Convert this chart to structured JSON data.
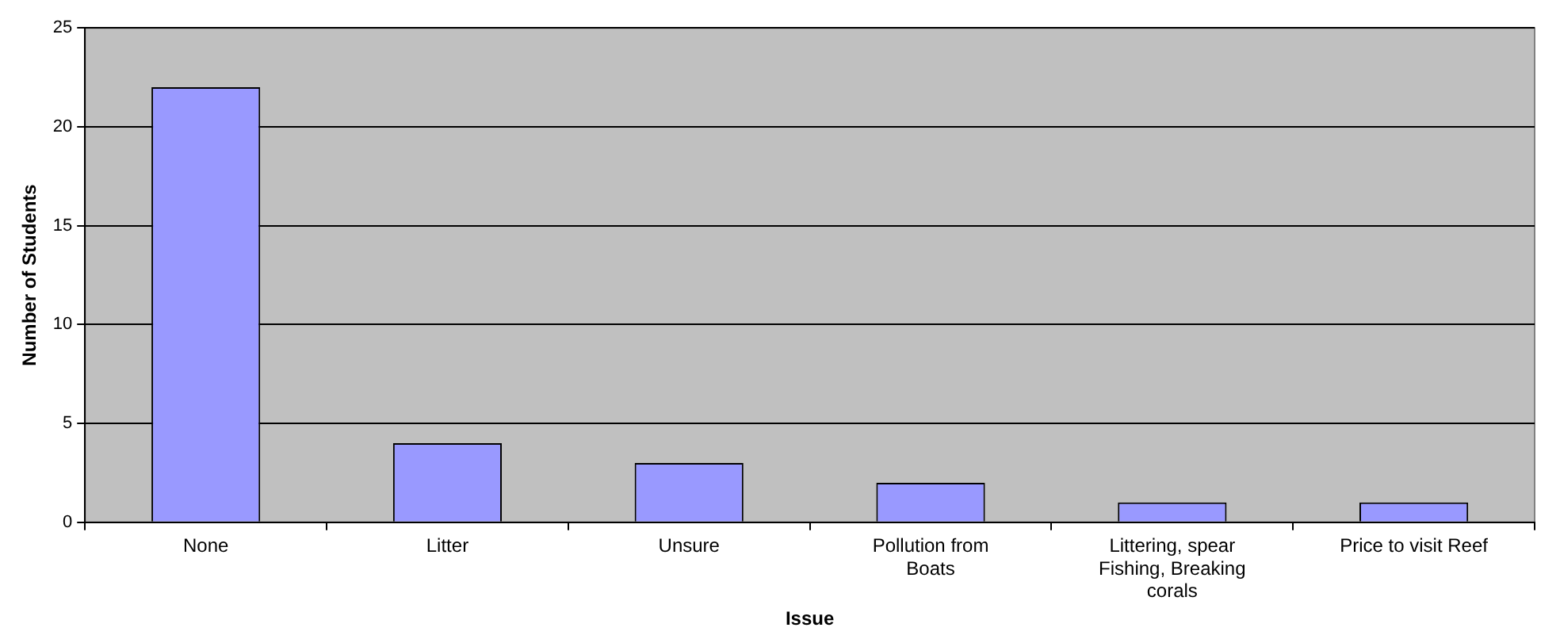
{
  "chart_data": {
    "type": "bar",
    "xlabel": "Issue",
    "ylabel": "Number of Students",
    "categories": [
      "None",
      "Litter",
      "Unsure",
      "Pollution from Boats",
      "Littering, spear Fishing, Breaking corals",
      "Price to visit Reef"
    ],
    "values": [
      22,
      4,
      3,
      2,
      1,
      1
    ],
    "color": "#9999ff",
    "ylim": [
      0,
      25
    ],
    "yticks": [
      0,
      5,
      10,
      15,
      20,
      25
    ],
    "grid": "y"
  }
}
